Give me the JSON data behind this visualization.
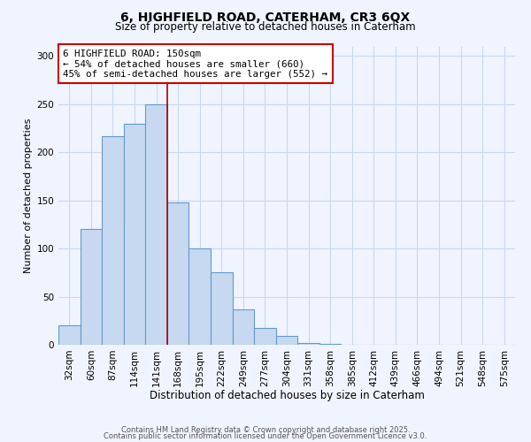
{
  "title1": "6, HIGHFIELD ROAD, CATERHAM, CR3 6QX",
  "title2": "Size of property relative to detached houses in Caterham",
  "bar_labels": [
    "32sqm",
    "60sqm",
    "87sqm",
    "114sqm",
    "141sqm",
    "168sqm",
    "195sqm",
    "222sqm",
    "249sqm",
    "277sqm",
    "304sqm",
    "331sqm",
    "358sqm",
    "385sqm",
    "412sqm",
    "439sqm",
    "466sqm",
    "494sqm",
    "521sqm",
    "548sqm",
    "575sqm"
  ],
  "bar_values": [
    20,
    120,
    217,
    230,
    250,
    148,
    100,
    75,
    37,
    17,
    9,
    2,
    1,
    0,
    0,
    0,
    0,
    0,
    0,
    0,
    0
  ],
  "bar_color": "#c6d9f0",
  "bar_edge_color": "#6699cc",
  "xlabel": "Distribution of detached houses by size in Caterham",
  "ylabel": "Number of detached properties",
  "ylim": [
    0,
    310
  ],
  "yticks": [
    0,
    50,
    100,
    150,
    200,
    250,
    300
  ],
  "property_label": "6 HIGHFIELD ROAD: 150sqm",
  "annotation_line1": "← 54% of detached houses are smaller (660)",
  "annotation_line2": "45% of semi-detached houses are larger (552) →",
  "vline_x": 4.5,
  "vline_color": "#aa0000",
  "footer1": "Contains HM Land Registry data © Crown copyright and database right 2025.",
  "footer2": "Contains public sector information licensed under the Open Government Licence v3.0.",
  "bg_color": "#f0f4ff",
  "grid_color": "#c8d8ee",
  "annotation_box_color": "#ffffff",
  "annotation_box_edge": "#cc0000",
  "title1_fontsize": 10,
  "title2_fontsize": 8.5,
  "xlabel_fontsize": 8.5,
  "ylabel_fontsize": 8,
  "tick_fontsize": 7.5,
  "footer_fontsize": 6
}
